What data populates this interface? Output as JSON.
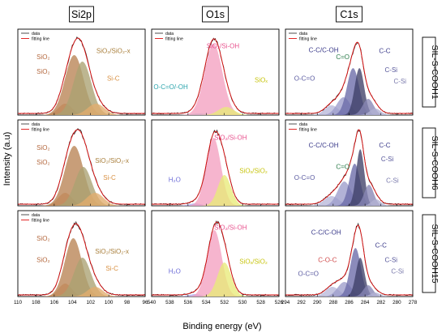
{
  "figure": {
    "y_axis_label": "Intensity (a.u)",
    "x_axis_label": "Binding energy (eV)",
    "columns": [
      "Si2p",
      "O1s",
      "C1s"
    ],
    "rows": [
      "SIL-S-COOH1",
      "SIL-S-COOH6",
      "SIL-S-COOH15"
    ],
    "legend": {
      "data": "data",
      "fit": "fitting line"
    }
  },
  "chart_data": [
    {
      "type": "line",
      "column": "Si2p",
      "sample": "SIL-S-COOH1",
      "x_range": [
        110,
        96
      ],
      "x_ticks": [
        110,
        108,
        106,
        104,
        102,
        100,
        98,
        96
      ],
      "y_range": [
        0,
        1
      ],
      "legend": [
        "data",
        "fitting line"
      ],
      "components": [
        {
          "label": "SiO₂",
          "center": 104.8,
          "fwhm": 1.8,
          "height": 0.14,
          "color": "#e0a47a",
          "text_color": "#b4683e"
        },
        {
          "label": "SiO₂",
          "center": 103.8,
          "fwhm": 2.4,
          "height": 0.74,
          "color": "#b98353",
          "text_color": "#b4683e"
        },
        {
          "label": "SiO₂/SiO₂-x",
          "center": 102.9,
          "fwhm": 2.3,
          "height": 0.66,
          "color": "#aaa272",
          "text_color": "#a87e3a"
        },
        {
          "label": "Si-C",
          "center": 101.4,
          "fwhm": 2.2,
          "height": 0.14,
          "color": "#e2ad6e",
          "text_color": "#d89042"
        }
      ],
      "envelope_peak": {
        "x": 103.6,
        "y": 0.93
      }
    },
    {
      "type": "line",
      "column": "O1s",
      "sample": "SIL-S-COOH1",
      "x_range": [
        540,
        526
      ],
      "x_ticks": [
        540,
        538,
        536,
        534,
        532,
        530,
        528,
        526
      ],
      "y_range": [
        0,
        1
      ],
      "legend": [
        "data",
        "fitting line"
      ],
      "components": [
        {
          "label": "O-C=O/-OH",
          "center": 534.8,
          "fwhm": 1.8,
          "height": 0.02,
          "color": "#7dd4d4",
          "text_color": "#2aa4ac"
        },
        {
          "label": "SiO₂/Si-OH",
          "center": 533.2,
          "fwhm": 2.3,
          "height": 0.88,
          "color": "#f4a0c0",
          "text_color": "#e8528e"
        },
        {
          "label": "SiOₓ",
          "center": 531.8,
          "fwhm": 2.0,
          "height": 0.1,
          "color": "#e8ea78",
          "text_color": "#c7c40e"
        }
      ],
      "envelope_peak": {
        "x": 533.2,
        "y": 0.92
      }
    },
    {
      "type": "line",
      "column": "C1s",
      "sample": "SIL-S-COOH1",
      "x_range": [
        294,
        278
      ],
      "x_ticks": [
        294,
        292,
        290,
        288,
        286,
        284,
        282,
        280,
        278
      ],
      "y_range": [
        0,
        1
      ],
      "legend": [
        "data",
        "fitting line"
      ],
      "components": [
        {
          "label": "O-C=O",
          "center": 288.2,
          "fwhm": 2.0,
          "height": 0.12,
          "color": "#b9b9da",
          "text_color": "#5a5aa0"
        },
        {
          "label": "C=O",
          "center": 286.7,
          "fwhm": 2.0,
          "height": 0.22,
          "color": "#9c9ccb",
          "text_color": "#2b7b4a"
        },
        {
          "label": "C-C/C-OH",
          "center": 285.5,
          "fwhm": 1.8,
          "height": 0.58,
          "color": "#6a6aa8",
          "text_color": "#3a3a8a"
        },
        {
          "label": "C-C",
          "center": 284.7,
          "fwhm": 1.4,
          "height": 0.58,
          "color": "#3f4068",
          "text_color": "#3a3a8a"
        },
        {
          "label": "C-Si",
          "center": 283.6,
          "fwhm": 1.6,
          "height": 0.2,
          "color": "#8887b5",
          "text_color": "#555599"
        },
        {
          "label": "C-Si",
          "center": 282.7,
          "fwhm": 1.6,
          "height": 0.08,
          "color": "#b2b2d4",
          "text_color": "#7777aa"
        }
      ],
      "envelope_peak": {
        "x": 285.0,
        "y": 0.88
      }
    },
    {
      "type": "line",
      "column": "Si2p",
      "sample": "SIL-S-COOH6",
      "x_range": [
        110,
        96
      ],
      "x_ticks": [
        110,
        108,
        106,
        104,
        102,
        100,
        98,
        96
      ],
      "y_range": [
        0,
        1
      ],
      "legend": [
        "data",
        "fitting line"
      ],
      "components": [
        {
          "label": "SiO₂",
          "center": 104.8,
          "fwhm": 1.8,
          "height": 0.16,
          "color": "#e0a47a",
          "text_color": "#b4683e"
        },
        {
          "label": "SiO₂",
          "center": 103.8,
          "fwhm": 2.4,
          "height": 0.74,
          "color": "#b98353",
          "text_color": "#b4683e"
        },
        {
          "label": "SiO₂/SiO₂-x",
          "center": 102.8,
          "fwhm": 2.2,
          "height": 0.48,
          "color": "#aaa272",
          "text_color": "#a87e3a"
        },
        {
          "label": "Si-C",
          "center": 101.5,
          "fwhm": 2.2,
          "height": 0.16,
          "color": "#e2ad6e",
          "text_color": "#d89042"
        }
      ],
      "envelope_peak": {
        "x": 103.6,
        "y": 0.92
      }
    },
    {
      "type": "line",
      "column": "O1s",
      "sample": "SIL-S-COOH6",
      "x_range": [
        540,
        526
      ],
      "x_ticks": [
        540,
        538,
        536,
        534,
        532,
        530,
        528,
        526
      ],
      "y_range": [
        0,
        1
      ],
      "legend": [],
      "components": [
        {
          "label": "H₂O",
          "center": 535.2,
          "fwhm": 1.6,
          "height": 0.03,
          "color": "#a8a8ee",
          "text_color": "#6e6ed8"
        },
        {
          "label": "SiO₂/Si-OH",
          "center": 533.2,
          "fwhm": 1.9,
          "height": 0.84,
          "color": "#f4a0c0",
          "text_color": "#e8528e"
        },
        {
          "label": "SiOₓ/SiO₂",
          "center": 532.0,
          "fwhm": 1.7,
          "height": 0.38,
          "color": "#e8ea78",
          "text_color": "#c7c40e"
        }
      ],
      "envelope_peak": {
        "x": 533.0,
        "y": 0.9
      }
    },
    {
      "type": "line",
      "column": "C1s",
      "sample": "SIL-S-COOH6",
      "x_range": [
        294,
        278
      ],
      "x_ticks": [
        294,
        292,
        290,
        288,
        286,
        284,
        282,
        280,
        278
      ],
      "y_range": [
        0,
        1
      ],
      "legend": [
        "data",
        "fitting line"
      ],
      "components": [
        {
          "label": "O-C=O",
          "center": 288.2,
          "fwhm": 2.2,
          "height": 0.12,
          "color": "#b9b9da",
          "text_color": "#5a5aa0"
        },
        {
          "label": "C=O",
          "center": 286.6,
          "fwhm": 2.0,
          "height": 0.3,
          "color": "#9c9ccb",
          "text_color": "#2b7b4a"
        },
        {
          "label": "C-C/C-OH",
          "center": 285.3,
          "fwhm": 1.6,
          "height": 0.52,
          "color": "#6a6aa8",
          "text_color": "#3a3a8a"
        },
        {
          "label": "C-C",
          "center": 284.6,
          "fwhm": 1.2,
          "height": 0.7,
          "color": "#3f4068",
          "text_color": "#3a3a8a"
        },
        {
          "label": "C-Si",
          "center": 283.5,
          "fwhm": 1.4,
          "height": 0.26,
          "color": "#8887b5",
          "text_color": "#555599"
        },
        {
          "label": "C-Si",
          "center": 282.6,
          "fwhm": 1.4,
          "height": 0.08,
          "color": "#b2b2d4",
          "text_color": "#7777aa"
        }
      ],
      "envelope_peak": {
        "x": 284.8,
        "y": 0.92
      }
    },
    {
      "type": "line",
      "column": "Si2p",
      "sample": "SIL-S-COOH15",
      "x_range": [
        110,
        96
      ],
      "x_ticks": [
        110,
        108,
        106,
        104,
        102,
        100,
        98,
        96
      ],
      "y_range": [
        0,
        1
      ],
      "legend": [
        "data",
        "fitting line"
      ],
      "components": [
        {
          "label": "SiO₂",
          "center": 104.8,
          "fwhm": 1.7,
          "height": 0.16,
          "color": "#e0a47a",
          "text_color": "#b4683e"
        },
        {
          "label": "SiO₂",
          "center": 103.9,
          "fwhm": 2.2,
          "height": 0.72,
          "color": "#b98353",
          "text_color": "#b4683e"
        },
        {
          "label": "SiO₂/SiO₂-x",
          "center": 102.9,
          "fwhm": 2.2,
          "height": 0.48,
          "color": "#aaa272",
          "text_color": "#a87e3a"
        },
        {
          "label": "Si-C",
          "center": 101.5,
          "fwhm": 2.0,
          "height": 0.12,
          "color": "#e2ad6e",
          "text_color": "#d89042"
        }
      ],
      "envelope_peak": {
        "x": 103.6,
        "y": 0.88
      }
    },
    {
      "type": "line",
      "column": "O1s",
      "sample": "SIL-S-COOH15",
      "x_range": [
        540,
        526
      ],
      "x_ticks": [
        540,
        538,
        536,
        534,
        532,
        530,
        528,
        526
      ],
      "y_range": [
        0,
        1
      ],
      "legend": [],
      "components": [
        {
          "label": "H₂O",
          "center": 535.2,
          "fwhm": 1.6,
          "height": 0.03,
          "color": "#a8a8ee",
          "text_color": "#6e6ed8"
        },
        {
          "label": "SiO₂/Si-OH",
          "center": 533.1,
          "fwhm": 1.9,
          "height": 0.82,
          "color": "#f4a0c0",
          "text_color": "#e8528e"
        },
        {
          "label": "SiOₓ/SiO₂",
          "center": 532.0,
          "fwhm": 1.8,
          "height": 0.42,
          "color": "#e8ea78",
          "text_color": "#c7c40e"
        }
      ],
      "envelope_peak": {
        "x": 533.0,
        "y": 0.9
      }
    },
    {
      "type": "line",
      "column": "C1s",
      "sample": "SIL-S-COOH15",
      "x_range": [
        294,
        278
      ],
      "x_ticks": [
        294,
        292,
        290,
        288,
        286,
        284,
        282,
        280,
        278
      ],
      "y_range": [
        0,
        1
      ],
      "legend": [],
      "components": [
        {
          "label": "O-C=O",
          "center": 288.1,
          "fwhm": 2.0,
          "height": 0.12,
          "color": "#b9b9da",
          "text_color": "#5a5aa0"
        },
        {
          "label": "C-O-C",
          "center": 286.6,
          "fwhm": 2.0,
          "height": 0.18,
          "color": "#9c9ccb",
          "text_color": "#d04a4a"
        },
        {
          "label": "C-C/C-OH",
          "center": 285.2,
          "fwhm": 1.6,
          "height": 0.6,
          "color": "#6a6aa8",
          "text_color": "#3a3a8a"
        },
        {
          "label": "C-C",
          "center": 284.6,
          "fwhm": 1.3,
          "height": 0.48,
          "color": "#3f4068",
          "text_color": "#3a3a8a"
        },
        {
          "label": "C-Si",
          "center": 283.6,
          "fwhm": 1.4,
          "height": 0.14,
          "color": "#8887b5",
          "text_color": "#555599"
        },
        {
          "label": "C-Si",
          "center": 282.7,
          "fwhm": 1.4,
          "height": 0.05,
          "color": "#b2b2d4",
          "text_color": "#7777aa"
        }
      ],
      "envelope_peak": {
        "x": 284.9,
        "y": 0.86
      }
    }
  ]
}
